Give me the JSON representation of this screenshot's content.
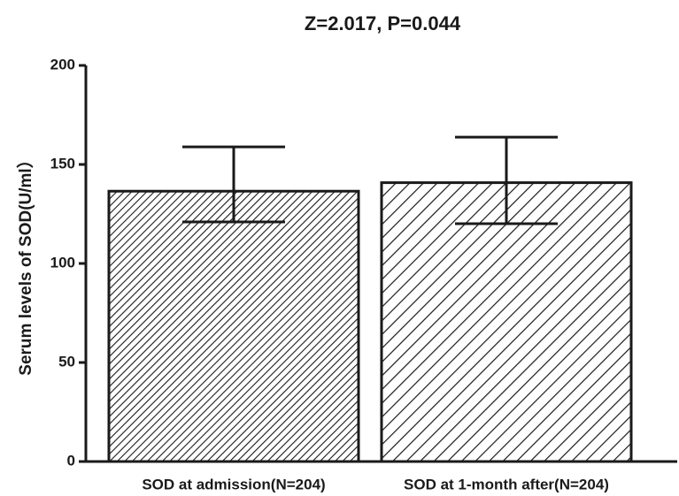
{
  "chart_data": {
    "type": "bar",
    "title": "Z=2.017, P=0.044",
    "ylabel": "Serum levels of SOD(U/ml）",
    "categories": [
      "SOD at admission(N=204)",
      "SOD at 1-month after(N=204)"
    ],
    "values": [
      136.5,
      140.8
    ],
    "upper": [
      158.9,
      163.8
    ],
    "lower": [
      121,
      120.1
    ],
    "color": "#1a1a1a",
    "ylim": [
      0,
      200
    ],
    "yticks": [
      0,
      50,
      100,
      150,
      200
    ],
    "grid": false
  }
}
